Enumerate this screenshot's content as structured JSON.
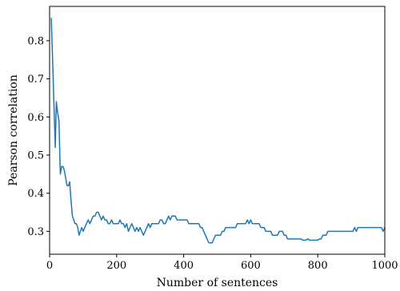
{
  "chart_data": {
    "type": "line",
    "xlabel": "Number of sentences",
    "ylabel": "Pearson correlation",
    "xlim": [
      0,
      1000
    ],
    "ylim": [
      0.24,
      0.89
    ],
    "xticks": [
      0,
      200,
      400,
      600,
      800,
      1000
    ],
    "yticks": [
      0.3,
      0.4,
      0.5,
      0.6,
      0.7,
      0.8
    ],
    "grid": false,
    "legend": "none",
    "series": [
      {
        "color": "#1f77b4",
        "points": [
          [
            5,
            0.86
          ],
          [
            10,
            0.72
          ],
          [
            14,
            0.6
          ],
          [
            17,
            0.52
          ],
          [
            20,
            0.64
          ],
          [
            24,
            0.61
          ],
          [
            28,
            0.59
          ],
          [
            32,
            0.45
          ],
          [
            36,
            0.47
          ],
          [
            40,
            0.47
          ],
          [
            44,
            0.46
          ],
          [
            48,
            0.44
          ],
          [
            52,
            0.42
          ],
          [
            56,
            0.42
          ],
          [
            60,
            0.43
          ],
          [
            64,
            0.38
          ],
          [
            68,
            0.34
          ],
          [
            72,
            0.33
          ],
          [
            76,
            0.32
          ],
          [
            80,
            0.32
          ],
          [
            84,
            0.31
          ],
          [
            88,
            0.29
          ],
          [
            92,
            0.3
          ],
          [
            96,
            0.31
          ],
          [
            100,
            0.3
          ],
          [
            105,
            0.31
          ],
          [
            110,
            0.32
          ],
          [
            115,
            0.33
          ],
          [
            120,
            0.32
          ],
          [
            125,
            0.33
          ],
          [
            130,
            0.34
          ],
          [
            135,
            0.34
          ],
          [
            140,
            0.35
          ],
          [
            145,
            0.35
          ],
          [
            150,
            0.34
          ],
          [
            155,
            0.33
          ],
          [
            160,
            0.34
          ],
          [
            165,
            0.33
          ],
          [
            170,
            0.33
          ],
          [
            175,
            0.32
          ],
          [
            180,
            0.32
          ],
          [
            185,
            0.33
          ],
          [
            190,
            0.32
          ],
          [
            195,
            0.32
          ],
          [
            200,
            0.32
          ],
          [
            205,
            0.32
          ],
          [
            210,
            0.33
          ],
          [
            215,
            0.32
          ],
          [
            220,
            0.32
          ],
          [
            225,
            0.31
          ],
          [
            230,
            0.32
          ],
          [
            235,
            0.3
          ],
          [
            240,
            0.31
          ],
          [
            245,
            0.32
          ],
          [
            250,
            0.31
          ],
          [
            255,
            0.3
          ],
          [
            260,
            0.31
          ],
          [
            265,
            0.3
          ],
          [
            270,
            0.31
          ],
          [
            275,
            0.3
          ],
          [
            280,
            0.29
          ],
          [
            285,
            0.3
          ],
          [
            290,
            0.31
          ],
          [
            295,
            0.32
          ],
          [
            300,
            0.31
          ],
          [
            305,
            0.32
          ],
          [
            310,
            0.32
          ],
          [
            315,
            0.32
          ],
          [
            320,
            0.32
          ],
          [
            325,
            0.32
          ],
          [
            330,
            0.33
          ],
          [
            335,
            0.33
          ],
          [
            340,
            0.32
          ],
          [
            345,
            0.32
          ],
          [
            350,
            0.33
          ],
          [
            355,
            0.34
          ],
          [
            360,
            0.33
          ],
          [
            365,
            0.34
          ],
          [
            370,
            0.34
          ],
          [
            375,
            0.34
          ],
          [
            380,
            0.33
          ],
          [
            385,
            0.33
          ],
          [
            390,
            0.33
          ],
          [
            395,
            0.33
          ],
          [
            400,
            0.33
          ],
          [
            405,
            0.33
          ],
          [
            410,
            0.33
          ],
          [
            415,
            0.32
          ],
          [
            420,
            0.32
          ],
          [
            425,
            0.32
          ],
          [
            430,
            0.32
          ],
          [
            435,
            0.32
          ],
          [
            440,
            0.32
          ],
          [
            445,
            0.32
          ],
          [
            450,
            0.31
          ],
          [
            455,
            0.31
          ],
          [
            460,
            0.3
          ],
          [
            465,
            0.29
          ],
          [
            470,
            0.28
          ],
          [
            475,
            0.27
          ],
          [
            480,
            0.27
          ],
          [
            485,
            0.27
          ],
          [
            490,
            0.28
          ],
          [
            495,
            0.29
          ],
          [
            500,
            0.29
          ],
          [
            505,
            0.29
          ],
          [
            510,
            0.29
          ],
          [
            515,
            0.3
          ],
          [
            520,
            0.3
          ],
          [
            525,
            0.31
          ],
          [
            530,
            0.31
          ],
          [
            535,
            0.31
          ],
          [
            540,
            0.31
          ],
          [
            545,
            0.31
          ],
          [
            550,
            0.31
          ],
          [
            555,
            0.31
          ],
          [
            560,
            0.32
          ],
          [
            565,
            0.32
          ],
          [
            570,
            0.32
          ],
          [
            575,
            0.32
          ],
          [
            580,
            0.32
          ],
          [
            585,
            0.32
          ],
          [
            590,
            0.33
          ],
          [
            595,
            0.32
          ],
          [
            600,
            0.33
          ],
          [
            605,
            0.32
          ],
          [
            610,
            0.32
          ],
          [
            615,
            0.32
          ],
          [
            620,
            0.32
          ],
          [
            625,
            0.32
          ],
          [
            630,
            0.31
          ],
          [
            635,
            0.31
          ],
          [
            640,
            0.31
          ],
          [
            645,
            0.3
          ],
          [
            650,
            0.3
          ],
          [
            655,
            0.3
          ],
          [
            660,
            0.3
          ],
          [
            665,
            0.29
          ],
          [
            670,
            0.29
          ],
          [
            675,
            0.29
          ],
          [
            680,
            0.29
          ],
          [
            685,
            0.3
          ],
          [
            690,
            0.3
          ],
          [
            695,
            0.3
          ],
          [
            700,
            0.29
          ],
          [
            705,
            0.29
          ],
          [
            710,
            0.28
          ],
          [
            715,
            0.28
          ],
          [
            720,
            0.28
          ],
          [
            725,
            0.28
          ],
          [
            730,
            0.28
          ],
          [
            735,
            0.28
          ],
          [
            740,
            0.28
          ],
          [
            745,
            0.28
          ],
          [
            750,
            0.28
          ],
          [
            755,
            0.277
          ],
          [
            760,
            0.277
          ],
          [
            765,
            0.277
          ],
          [
            770,
            0.28
          ],
          [
            775,
            0.277
          ],
          [
            780,
            0.277
          ],
          [
            785,
            0.277
          ],
          [
            790,
            0.277
          ],
          [
            795,
            0.277
          ],
          [
            800,
            0.277
          ],
          [
            805,
            0.28
          ],
          [
            810,
            0.28
          ],
          [
            815,
            0.29
          ],
          [
            820,
            0.29
          ],
          [
            825,
            0.29
          ],
          [
            830,
            0.3
          ],
          [
            835,
            0.3
          ],
          [
            840,
            0.3
          ],
          [
            845,
            0.3
          ],
          [
            850,
            0.3
          ],
          [
            855,
            0.3
          ],
          [
            860,
            0.3
          ],
          [
            865,
            0.3
          ],
          [
            870,
            0.3
          ],
          [
            875,
            0.3
          ],
          [
            880,
            0.3
          ],
          [
            885,
            0.3
          ],
          [
            890,
            0.3
          ],
          [
            895,
            0.3
          ],
          [
            900,
            0.3
          ],
          [
            905,
            0.3
          ],
          [
            910,
            0.31
          ],
          [
            915,
            0.3
          ],
          [
            920,
            0.31
          ],
          [
            925,
            0.31
          ],
          [
            930,
            0.31
          ],
          [
            935,
            0.31
          ],
          [
            940,
            0.31
          ],
          [
            945,
            0.31
          ],
          [
            950,
            0.31
          ],
          [
            955,
            0.31
          ],
          [
            960,
            0.31
          ],
          [
            965,
            0.31
          ],
          [
            970,
            0.31
          ],
          [
            975,
            0.31
          ],
          [
            980,
            0.31
          ],
          [
            985,
            0.31
          ],
          [
            990,
            0.31
          ],
          [
            995,
            0.3
          ],
          [
            1000,
            0.31
          ]
        ]
      }
    ]
  }
}
